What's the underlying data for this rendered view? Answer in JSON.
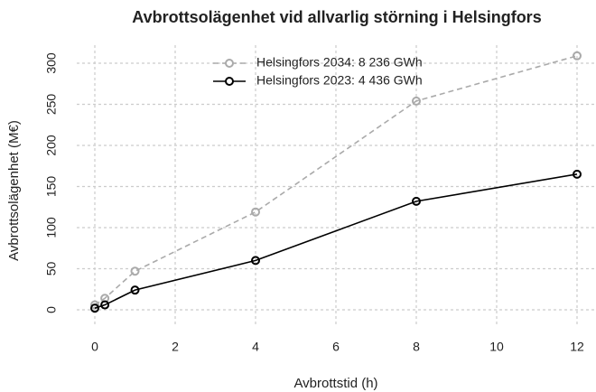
{
  "chart_data": {
    "type": "line",
    "title": "Avbrottsolägenhet vid allvarlig störning i Helsingfors",
    "x_label": "Avbrottstid (h)",
    "y_label": "Avbrottsolägenhet (M€)",
    "series": [
      {
        "name": "Helsingfors 2034: 8 236 GWh",
        "color": "#aaaaaa",
        "dashed": true,
        "x": [
          0,
          0.25,
          1,
          4,
          8,
          12
        ],
        "values": [
          6,
          14,
          47,
          119,
          254,
          309
        ]
      },
      {
        "name": "Helsingfors 2023: 4 436 GWh",
        "color": "#000000",
        "dashed": false,
        "x": [
          0,
          0.25,
          1,
          4,
          8,
          12
        ],
        "values": [
          2,
          6,
          24,
          60,
          132,
          165
        ]
      }
    ],
    "xlim": [
      0,
      12
    ],
    "xticks": [
      0,
      2,
      4,
      6,
      8,
      10,
      12
    ],
    "ylim": [
      0,
      300
    ],
    "yticks": [
      0,
      50,
      100,
      150,
      200,
      250,
      300
    ],
    "grid": true,
    "legend": "top"
  }
}
